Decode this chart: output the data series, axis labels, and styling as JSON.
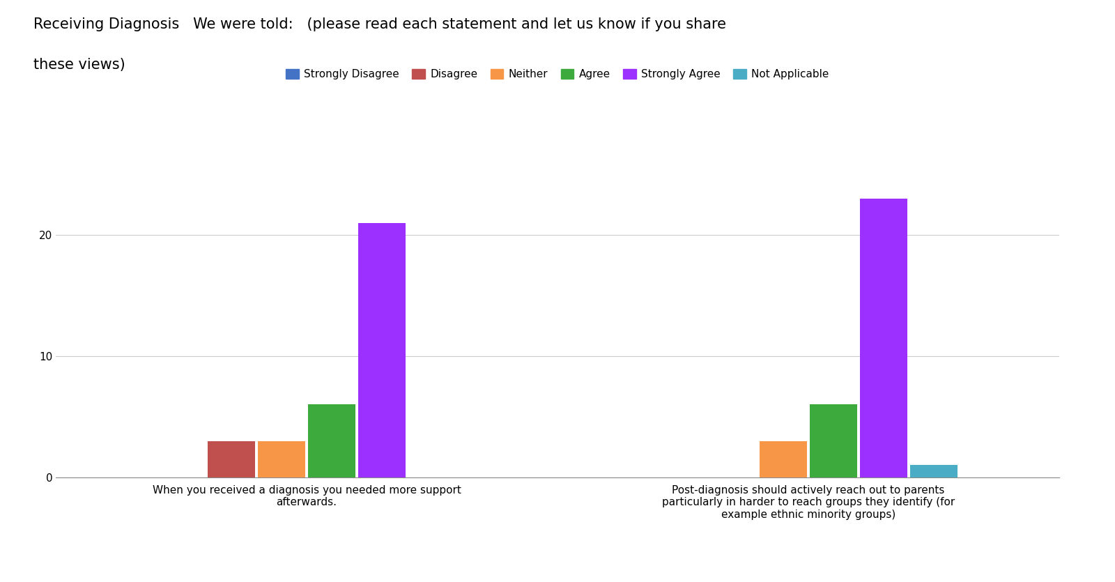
{
  "title_line1": "Receiving Diagnosis   We were told:   (please read each statement and let us know if you share",
  "title_line2": "these views)",
  "categories": [
    "When you received a diagnosis you needed more support\nafterwards.",
    "Post-diagnosis should actively reach out to parents\nparticularly in harder to reach groups they identify (for\nexample ethnic minority groups)"
  ],
  "legend_labels": [
    "Strongly Disagree",
    "Disagree",
    "Neither",
    "Agree",
    "Strongly Agree",
    "Not Applicable"
  ],
  "series": {
    "Strongly Disagree": [
      0,
      0
    ],
    "Disagree": [
      3,
      0
    ],
    "Neither": [
      3,
      3
    ],
    "Agree": [
      6,
      6
    ],
    "Strongly Agree": [
      21,
      23
    ],
    "Not Applicable": [
      0,
      1
    ]
  },
  "bar_colors": {
    "Strongly Disagree": "#4472C4",
    "Disagree": "#C0504D",
    "Neither": "#F79646",
    "Agree": "#3DAA3D",
    "Strongly Agree": "#9B30FF",
    "Not Applicable": "#4BACC6"
  },
  "ylim": [
    0,
    25
  ],
  "yticks": [
    0,
    10,
    20
  ],
  "background_color": "#FFFFFF",
  "title_fontsize": 15,
  "tick_fontsize": 11,
  "legend_fontsize": 11
}
